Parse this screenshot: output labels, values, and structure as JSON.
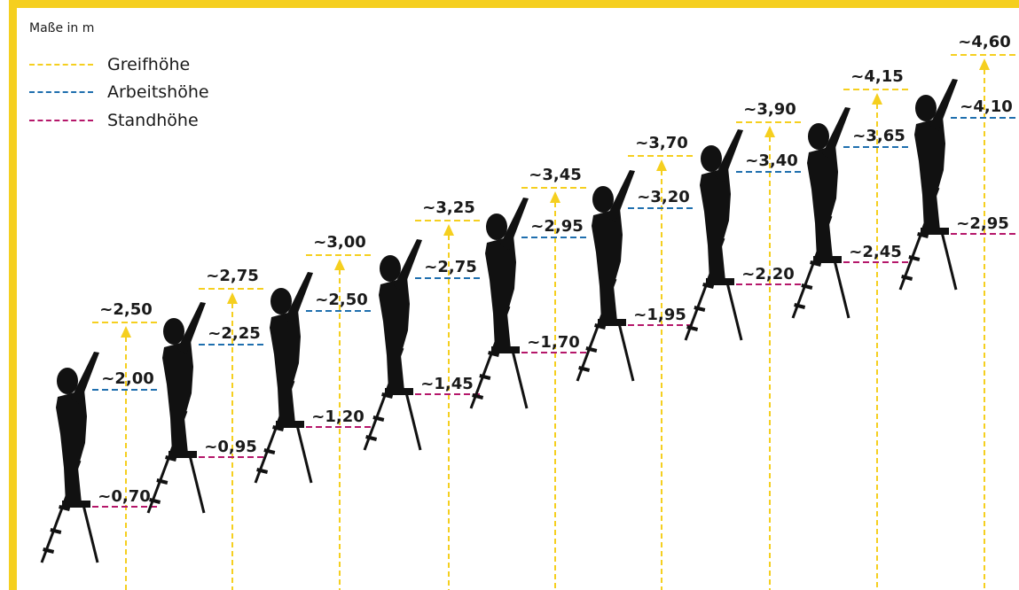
{
  "unit_note": "Maße in m",
  "legend": [
    {
      "key": "grip",
      "label": "Greifhöhe",
      "color": "#f5cf1f"
    },
    {
      "key": "work",
      "label": "Arbeitshöhe",
      "color": "#1f6fae"
    },
    {
      "key": "stand",
      "label": "Standhöhe",
      "color": "#b5176a"
    }
  ],
  "colors": {
    "frame": "#f5cf1f",
    "silhouette": "#111111",
    "arrow": "#f5cf1f"
  },
  "ladders": [
    {
      "grip": "~2,50",
      "work": "~2,00",
      "stand": "~0,70"
    },
    {
      "grip": "~2,75",
      "work": "~2,25",
      "stand": "~0,95"
    },
    {
      "grip": "~3,00",
      "work": "~2,50",
      "stand": "~1,20"
    },
    {
      "grip": "~3,25",
      "work": "~2,75",
      "stand": "~1,45"
    },
    {
      "grip": "~3,45",
      "work": "~2,95",
      "stand": "~1,70"
    },
    {
      "grip": "~3,70",
      "work": "~3,20",
      "stand": "~1,95"
    },
    {
      "grip": "~3,90",
      "work": "~3,40",
      "stand": "~2,20"
    },
    {
      "grip": "~4,15",
      "work": "~3,65",
      "stand": "~2,45"
    },
    {
      "grip": "~4,60",
      "work": "~4,10",
      "stand": "~2,95"
    }
  ]
}
